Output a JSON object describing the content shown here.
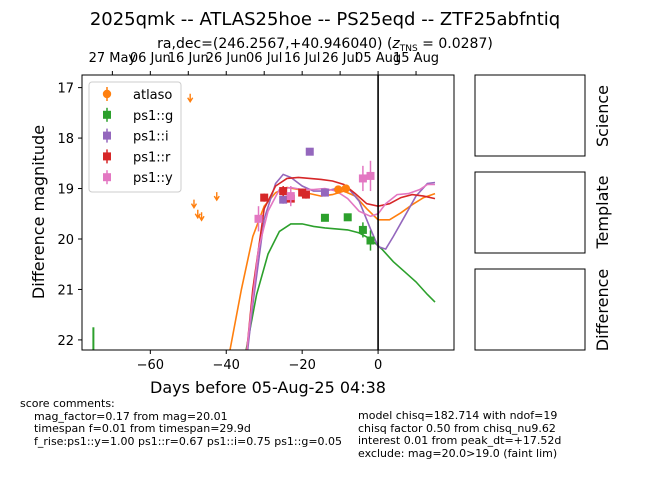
{
  "chart_data": {
    "type": "scatter",
    "title": "2025qmk -- ATLAS25hoe -- PS25eqd -- ZTF25abfntiq",
    "subtitle_main": "ra,dec=(246.2567,+40.946040) (",
    "subtitle_z_symbol": "z",
    "subtitle_z_sub": "TNS",
    "subtitle_z_value": " = 0.0287)",
    "xlabel": "Days before 05-Aug-25 04:38",
    "ylabel": "Difference magnitude",
    "xlim": [
      -78,
      20
    ],
    "ylim": [
      22.2,
      16.75
    ],
    "x_ticks": [
      -60,
      -40,
      -20,
      0
    ],
    "x_tick_labels": [
      "−60",
      "−40",
      "−20",
      "0"
    ],
    "y_ticks": [
      17,
      18,
      19,
      20,
      21,
      22
    ],
    "y_tick_labels": [
      "17",
      "18",
      "19",
      "20",
      "21",
      "22"
    ],
    "top_axis_ticks": [
      -70,
      -60,
      -50,
      -40,
      -30,
      -20,
      -10,
      0,
      10
    ],
    "top_axis_labels": [
      "27 May",
      "06 Jun",
      "16 Jun",
      "26 Jun",
      "06 Jul",
      "16 Jul",
      "26 Jul",
      "05 Aug",
      "15 Aug"
    ],
    "vline_x": 0,
    "grid": false,
    "legend_placement": "top-left",
    "series": [
      {
        "name": "atlaso",
        "color": "#ff7f0e",
        "marker": "circle",
        "upper_limits": [
          [
            -49.5,
            17.2
          ],
          [
            -48.5,
            19.3
          ],
          [
            -47.5,
            19.5
          ],
          [
            -46.5,
            19.55
          ],
          [
            -42.5,
            19.15
          ]
        ],
        "points": [
          [
            -10.5,
            19.02,
            0.08
          ],
          [
            -8.5,
            19.0,
            0.08
          ]
        ],
        "curve": [
          [
            -45,
            23.0
          ],
          [
            -40,
            22.6
          ],
          [
            -36,
            21.0
          ],
          [
            -33,
            19.95
          ],
          [
            -30,
            19.35
          ],
          [
            -27,
            19.08
          ],
          [
            -24,
            18.98
          ],
          [
            -21,
            19.02
          ],
          [
            -18,
            19.1
          ],
          [
            -15,
            19.15
          ],
          [
            -12,
            19.12
          ],
          [
            -9,
            19.05
          ],
          [
            -6,
            19.15
          ],
          [
            -3,
            19.4
          ],
          [
            0,
            19.62
          ],
          [
            3,
            19.62
          ],
          [
            6,
            19.48
          ],
          [
            9,
            19.32
          ],
          [
            12,
            19.18
          ],
          [
            15,
            19.1
          ]
        ]
      },
      {
        "name": "ps1::g",
        "color": "#2ca02c",
        "marker": "square",
        "upper_limits": [],
        "points": [
          [
            -14,
            19.58,
            0.06
          ],
          [
            -8,
            19.57,
            0.06
          ],
          [
            -4,
            19.82,
            0.15
          ],
          [
            -2,
            20.03,
            0.2
          ]
        ],
        "curve": [
          [
            -38,
            23.3
          ],
          [
            -35,
            22.3
          ],
          [
            -32,
            21.1
          ],
          [
            -29,
            20.3
          ],
          [
            -26,
            19.85
          ],
          [
            -23,
            19.7
          ],
          [
            -20,
            19.7
          ],
          [
            -17,
            19.75
          ],
          [
            -14,
            19.78
          ],
          [
            -11,
            19.8
          ],
          [
            -8,
            19.82
          ],
          [
            -5,
            19.88
          ],
          [
            -2,
            20.0
          ],
          [
            1,
            20.2
          ],
          [
            4,
            20.45
          ],
          [
            7,
            20.65
          ],
          [
            10,
            20.85
          ],
          [
            13,
            21.1
          ],
          [
            15,
            21.25
          ]
        ]
      },
      {
        "name": "ps1::i",
        "color": "#9467bd",
        "marker": "square",
        "upper_limits": [],
        "points": [
          [
            -25,
            19.22,
            0.08
          ],
          [
            -18,
            18.27,
            0.06
          ],
          [
            -14,
            19.08,
            0.08
          ]
        ],
        "curve": [
          [
            -36,
            23.3
          ],
          [
            -33,
            21.3
          ],
          [
            -30,
            19.6
          ],
          [
            -27,
            18.9
          ],
          [
            -25,
            18.72
          ],
          [
            -23,
            18.78
          ],
          [
            -20,
            18.95
          ],
          [
            -17,
            19.05
          ],
          [
            -14,
            19.05
          ],
          [
            -11,
            19.0
          ],
          [
            -8,
            18.98
          ],
          [
            -5,
            19.25
          ],
          [
            -2,
            19.8
          ],
          [
            0,
            20.15
          ],
          [
            2,
            20.2
          ],
          [
            4,
            19.95
          ],
          [
            7,
            19.55
          ],
          [
            10,
            19.15
          ],
          [
            13,
            18.9
          ],
          [
            15,
            18.88
          ]
        ]
      },
      {
        "name": "ps1::r",
        "color": "#d62728",
        "marker": "square",
        "upper_limits": [],
        "points": [
          [
            -30,
            19.18,
            0.08
          ],
          [
            -25,
            19.05,
            0.1
          ],
          [
            -23,
            19.2,
            0.1
          ],
          [
            -20,
            19.08,
            0.08
          ],
          [
            -19,
            19.12,
            0.08
          ]
        ],
        "curve": [
          [
            -36,
            23.3
          ],
          [
            -33,
            21.0
          ],
          [
            -30,
            19.4
          ],
          [
            -27,
            18.95
          ],
          [
            -24,
            18.8
          ],
          [
            -21,
            18.78
          ],
          [
            -18,
            18.8
          ],
          [
            -15,
            18.82
          ],
          [
            -12,
            18.85
          ],
          [
            -9,
            18.92
          ],
          [
            -6,
            19.1
          ],
          [
            -3,
            19.3
          ],
          [
            0,
            19.35
          ],
          [
            3,
            19.3
          ],
          [
            6,
            19.18
          ],
          [
            9,
            19.12
          ],
          [
            12,
            19.15
          ],
          [
            15,
            19.2
          ]
        ]
      },
      {
        "name": "ps1::y",
        "color": "#e377c2",
        "marker": "square",
        "upper_limits": [],
        "points": [
          [
            -31.5,
            19.6,
            0.25
          ],
          [
            -23,
            19.15,
            0.2
          ],
          [
            -4,
            18.8,
            0.25
          ],
          [
            -2,
            18.75,
            0.3
          ]
        ],
        "curve": [
          [
            -36,
            23.3
          ],
          [
            -34,
            21.8
          ],
          [
            -31.5,
            20.2
          ],
          [
            -29,
            19.45
          ],
          [
            -26,
            19.02
          ],
          [
            -23,
            18.98
          ],
          [
            -20,
            19.02
          ],
          [
            -17,
            19.02
          ],
          [
            -14,
            19.0
          ],
          [
            -11,
            19.05
          ],
          [
            -8,
            19.2
          ],
          [
            -5,
            19.45
          ],
          [
            -2,
            19.55
          ],
          [
            0,
            19.5
          ],
          [
            2,
            19.3
          ],
          [
            5,
            19.12
          ],
          [
            8,
            19.1
          ],
          [
            11,
            19.02
          ],
          [
            13,
            18.92
          ],
          [
            15,
            18.92
          ]
        ]
      }
    ],
    "lower_marker": {
      "x": -75,
      "y_from": 21.75,
      "y_to": 22.2,
      "color": "#2ca02c"
    }
  },
  "panels": [
    {
      "label": "Science"
    },
    {
      "label": "Template"
    },
    {
      "label": "Difference"
    }
  ],
  "comments_left": "score comments:\n    mag_factor=0.17 from mag=20.01\n    timespan f=0.01 from timespan=29.9d\n    f_rise:ps1::y=1.00 ps1::r=0.67 ps1::i=0.75 ps1::g=0.05",
  "comments_right": "model chisq=182.714 with ndof=19\nchisq factor 0.50 from chisq_nu9.62\ninterest 0.01 from peak_dt=+17.52d\nexclude: mag=20.0>19.0 (faint lim)"
}
